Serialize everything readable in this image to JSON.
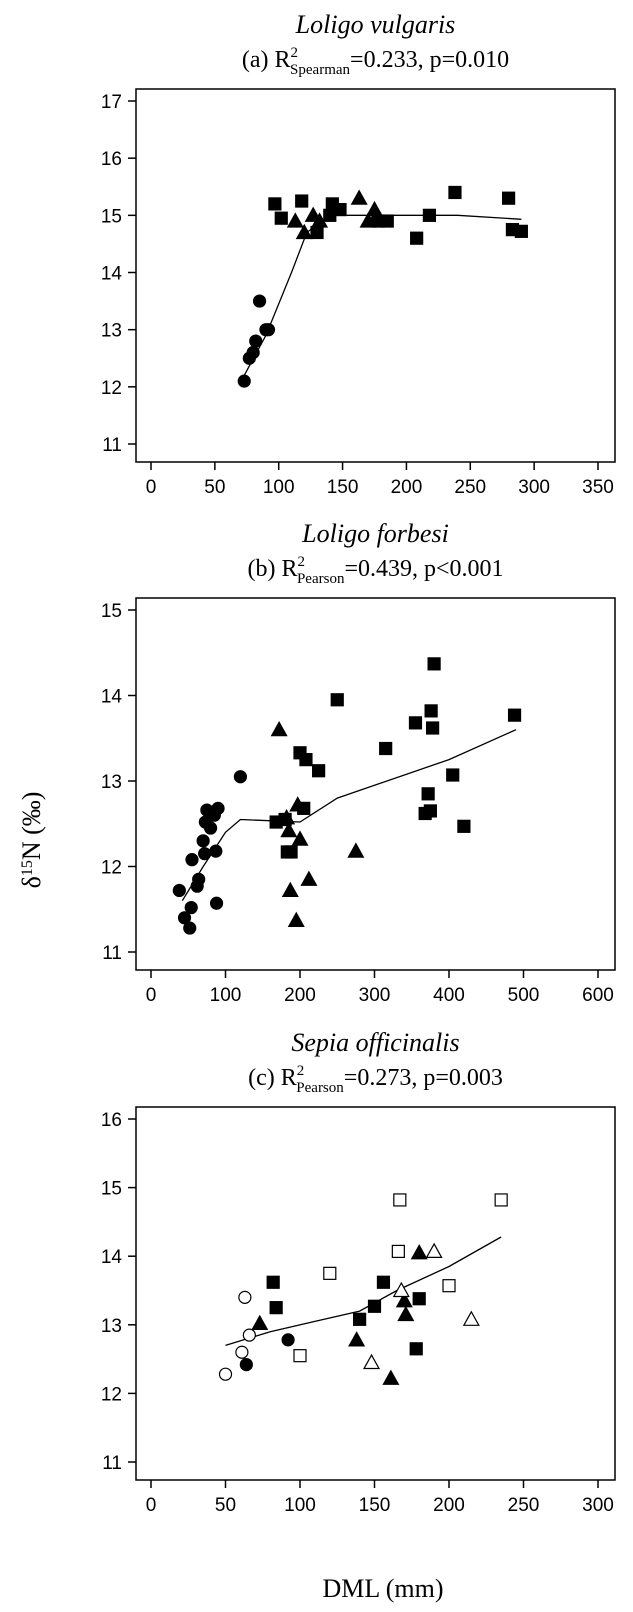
{
  "ylabel": "δ15N (‰)",
  "xlabel": "DML (mm)",
  "chart_data": [
    {
      "type": "scatter",
      "title": "Loligo vulgaris",
      "subtitle_prefix": "(a) R",
      "subtitle_sup": "2",
      "subtitle_sub": "Spearman",
      "subtitle_suffix": "=0.233, p=0.010",
      "xlim": [
        0,
        350
      ],
      "ylim": [
        11,
        17
      ],
      "xticks": [
        0,
        50,
        100,
        150,
        200,
        250,
        300,
        350
      ],
      "yticks": [
        11,
        12,
        13,
        14,
        15,
        16,
        17
      ],
      "grid": false,
      "series": [
        {
          "marker": "circle-filled",
          "points": [
            [
              73,
              12.1
            ],
            [
              77,
              12.5
            ],
            [
              80,
              12.6
            ],
            [
              82,
              12.8
            ],
            [
              85,
              13.5
            ],
            [
              90,
              13.0
            ],
            [
              92,
              13.0
            ]
          ]
        },
        {
          "marker": "triangle-filled",
          "points": [
            [
              113,
              14.9
            ],
            [
              120,
              14.7
            ],
            [
              127,
              15.0
            ],
            [
              132,
              14.9
            ],
            [
              163,
              15.3
            ],
            [
              170,
              14.9
            ],
            [
              175,
              15.1
            ],
            [
              177,
              15.0
            ]
          ]
        },
        {
          "marker": "square-filled",
          "points": [
            [
              97,
              15.2
            ],
            [
              102,
              14.95
            ],
            [
              118,
              15.25
            ],
            [
              130,
              14.7
            ],
            [
              140,
              15.0
            ],
            [
              142,
              15.2
            ],
            [
              148,
              15.1
            ],
            [
              178,
              14.9
            ],
            [
              185,
              14.9
            ],
            [
              208,
              14.6
            ],
            [
              218,
              15.0
            ],
            [
              238,
              15.4
            ],
            [
              280,
              15.3
            ],
            [
              283,
              14.75
            ],
            [
              290,
              14.72
            ]
          ]
        }
      ],
      "fit_line": [
        [
          73,
          12.2
        ],
        [
          90,
          12.9
        ],
        [
          110,
          14.0
        ],
        [
          122,
          14.7
        ],
        [
          140,
          15.0
        ],
        [
          180,
          15.0
        ],
        [
          240,
          15.0
        ],
        [
          290,
          14.93
        ]
      ]
    },
    {
      "type": "scatter",
      "title": "Loligo forbesi",
      "subtitle_prefix": "(b) R",
      "subtitle_sup": "2",
      "subtitle_sub": "Pearson",
      "subtitle_suffix": "=0.439, p<0.001",
      "xlim": [
        0,
        600
      ],
      "ylim": [
        11,
        15
      ],
      "xticks": [
        0,
        100,
        200,
        300,
        400,
        500,
        600
      ],
      "yticks": [
        11,
        12,
        13,
        14,
        15
      ],
      "grid": false,
      "series": [
        {
          "marker": "circle-filled",
          "points": [
            [
              38,
              11.72
            ],
            [
              45,
              11.4
            ],
            [
              52,
              11.28
            ],
            [
              54,
              11.52
            ],
            [
              55,
              12.08
            ],
            [
              62,
              11.77
            ],
            [
              64,
              11.85
            ],
            [
              70,
              12.3
            ],
            [
              72,
              12.15
            ],
            [
              73,
              12.52
            ],
            [
              75,
              12.66
            ],
            [
              80,
              12.45
            ],
            [
              85,
              12.6
            ],
            [
              87,
              12.18
            ],
            [
              88,
              11.57
            ],
            [
              90,
              12.68
            ],
            [
              120,
              13.05
            ]
          ]
        },
        {
          "marker": "triangle-filled",
          "points": [
            [
              172,
              13.6
            ],
            [
              182,
              12.57
            ],
            [
              185,
              12.42
            ],
            [
              187,
              11.72
            ],
            [
              195,
              11.37
            ],
            [
              197,
              12.72
            ],
            [
              200,
              12.32
            ],
            [
              212,
              11.85
            ],
            [
              275,
              12.18
            ]
          ]
        },
        {
          "marker": "square-filled",
          "points": [
            [
              168,
              12.52
            ],
            [
              180,
              12.55
            ],
            [
              183,
              12.17
            ],
            [
              188,
              12.17
            ],
            [
              200,
              13.33
            ],
            [
              205,
              12.68
            ],
            [
              208,
              13.25
            ],
            [
              225,
              13.12
            ],
            [
              250,
              13.95
            ],
            [
              315,
              13.38
            ],
            [
              355,
              13.68
            ],
            [
              368,
              12.62
            ],
            [
              372,
              12.85
            ],
            [
              375,
              12.65
            ],
            [
              376,
              13.82
            ],
            [
              378,
              13.62
            ],
            [
              380,
              14.37
            ],
            [
              405,
              13.07
            ],
            [
              420,
              12.47
            ],
            [
              488,
              13.77
            ]
          ]
        }
      ],
      "fit_line": [
        [
          42,
          11.6
        ],
        [
          70,
          12.0
        ],
        [
          100,
          12.4
        ],
        [
          120,
          12.55
        ],
        [
          200,
          12.52
        ],
        [
          250,
          12.8
        ],
        [
          300,
          12.95
        ],
        [
          400,
          13.25
        ],
        [
          490,
          13.6
        ]
      ]
    },
    {
      "type": "scatter",
      "title": "Sepia officinalis",
      "subtitle_prefix": "(c) R",
      "subtitle_sup": "2",
      "subtitle_sub": "Pearson",
      "subtitle_suffix": "=0.273, p=0.003",
      "xlim": [
        0,
        300
      ],
      "ylim": [
        11,
        16
      ],
      "xticks": [
        0,
        50,
        100,
        150,
        200,
        250,
        300
      ],
      "yticks": [
        11,
        12,
        13,
        14,
        15,
        16
      ],
      "grid": false,
      "series": [
        {
          "marker": "circle-filled",
          "points": [
            [
              64,
              12.42
            ],
            [
              92,
              12.78
            ]
          ]
        },
        {
          "marker": "circle-open",
          "points": [
            [
              50,
              12.28
            ],
            [
              61,
              12.6
            ],
            [
              63,
              13.4
            ],
            [
              66,
              12.85
            ]
          ]
        },
        {
          "marker": "triangle-filled",
          "points": [
            [
              73,
              13.02
            ],
            [
              138,
              12.78
            ],
            [
              161,
              12.22
            ],
            [
              170,
              13.35
            ],
            [
              171,
              13.15
            ],
            [
              180,
              14.05
            ]
          ]
        },
        {
          "marker": "triangle-open",
          "points": [
            [
              148,
              12.45
            ],
            [
              168,
              13.5
            ],
            [
              190,
              14.07
            ],
            [
              215,
              13.08
            ]
          ]
        },
        {
          "marker": "square-filled",
          "points": [
            [
              82,
              13.62
            ],
            [
              84,
              13.25
            ],
            [
              140,
              13.08
            ],
            [
              150,
              13.27
            ],
            [
              156,
              13.62
            ],
            [
              178,
              12.65
            ],
            [
              180,
              13.38
            ]
          ]
        },
        {
          "marker": "square-open",
          "points": [
            [
              100,
              12.55
            ],
            [
              120,
              13.75
            ],
            [
              166,
              14.07
            ],
            [
              167,
              14.82
            ],
            [
              200,
              13.57
            ],
            [
              235,
              14.82
            ]
          ]
        }
      ],
      "fit_line": [
        [
          50,
          12.7
        ],
        [
          80,
          12.9
        ],
        [
          110,
          13.05
        ],
        [
          140,
          13.2
        ],
        [
          165,
          13.5
        ],
        [
          200,
          13.85
        ],
        [
          235,
          14.28
        ]
      ]
    }
  ]
}
